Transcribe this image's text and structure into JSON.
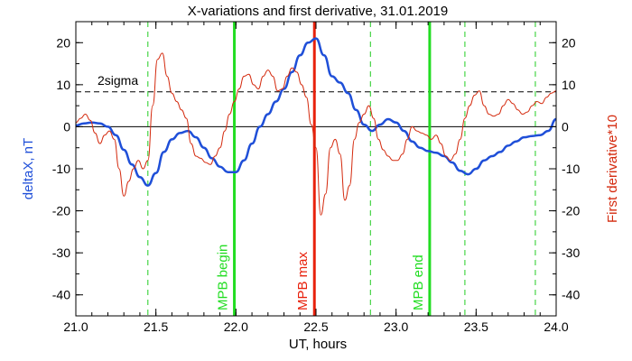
{
  "chart_data": {
    "type": "line",
    "title": "X-variations and first derivative, 31.01.2019",
    "xlabel": "UT, hours",
    "ylabel_left": "deltaX, nT",
    "ylabel_right": "First derivative*10",
    "xlim": [
      21.0,
      24.0
    ],
    "ylim": [
      -45,
      25
    ],
    "x_ticks": [
      "21.0",
      "21.5",
      "22.0",
      "22.5",
      "23.0",
      "23.5",
      "24.0"
    ],
    "y_ticks": [
      "20",
      "10",
      "0",
      "-10",
      "-20",
      "-30",
      "-40"
    ],
    "y_tick_values": [
      20,
      10,
      0,
      -10,
      -20,
      -30,
      -40
    ],
    "colors": {
      "deltaX": "#1f4fd8",
      "derivative": "#d42a0e",
      "mpb_begin_end": "#22dd22",
      "mpb_max": "#e8210c",
      "dashed_green": "#22cc22",
      "sigma": "#000000",
      "left_axis_title": "#1f4fd8",
      "right_axis_title": "#d42a0e"
    },
    "sigma_line": {
      "label": "2sigma",
      "y": 8.3
    },
    "zero_line": 0,
    "vertical_markers": [
      {
        "label": "MPB begin",
        "x": 21.99,
        "style": "solid",
        "color_key": "mpb_begin_end"
      },
      {
        "label": "MPB max",
        "x": 22.49,
        "style": "solid",
        "color_key": "mpb_max"
      },
      {
        "label": "MPB end",
        "x": 23.21,
        "style": "solid",
        "color_key": "mpb_begin_end"
      },
      {
        "label": "",
        "x": 21.45,
        "style": "dashed",
        "color_key": "dashed_green"
      },
      {
        "label": "",
        "x": 22.84,
        "style": "dashed",
        "color_key": "dashed_green"
      },
      {
        "label": "",
        "x": 23.43,
        "style": "dashed",
        "color_key": "dashed_green"
      },
      {
        "label": "",
        "x": 23.87,
        "style": "dashed",
        "color_key": "dashed_green"
      }
    ],
    "series": [
      {
        "key": "deltaX",
        "x": [
          21.0,
          21.05,
          21.1,
          21.15,
          21.2,
          21.25,
          21.3,
          21.35,
          21.4,
          21.45,
          21.5,
          21.55,
          21.6,
          21.65,
          21.7,
          21.75,
          21.8,
          21.85,
          21.9,
          21.95,
          22.0,
          22.05,
          22.1,
          22.15,
          22.2,
          22.25,
          22.3,
          22.35,
          22.4,
          22.45,
          22.5,
          22.55,
          22.6,
          22.65,
          22.7,
          22.75,
          22.8,
          22.85,
          22.9,
          22.95,
          23.0,
          23.05,
          23.1,
          23.15,
          23.2,
          23.25,
          23.3,
          23.35,
          23.4,
          23.45,
          23.5,
          23.55,
          23.6,
          23.65,
          23.7,
          23.75,
          23.8,
          23.85,
          23.9,
          23.95,
          24.0
        ],
        "values": [
          0.3,
          0.8,
          1.0,
          0.8,
          0.0,
          -2.0,
          -5.5,
          -9.0,
          -12.0,
          -14.0,
          -11.0,
          -6.0,
          -3.0,
          -1.5,
          -1.0,
          -2.5,
          -5.0,
          -7.5,
          -9.5,
          -10.8,
          -10.8,
          -8.0,
          -4.0,
          0.0,
          3.0,
          6.0,
          9.0,
          13.0,
          17.0,
          20.0,
          21.0,
          17.0,
          12.0,
          10.5,
          8.0,
          4.0,
          0.5,
          -1.0,
          0.5,
          1.8,
          1.0,
          -1.0,
          -3.5,
          -5.0,
          -5.8,
          -6.2,
          -7.0,
          -8.5,
          -10.5,
          -11.3,
          -10.0,
          -8.0,
          -7.0,
          -6.0,
          -4.5,
          -3.5,
          -2.5,
          -2.2,
          -2.0,
          -1.0,
          1.8
        ]
      },
      {
        "key": "derivative",
        "x": [
          21.0,
          21.03,
          21.06,
          21.09,
          21.12,
          21.15,
          21.18,
          21.21,
          21.24,
          21.27,
          21.3,
          21.33,
          21.36,
          21.39,
          21.42,
          21.45,
          21.48,
          21.51,
          21.54,
          21.57,
          21.6,
          21.63,
          21.66,
          21.69,
          21.72,
          21.75,
          21.78,
          21.81,
          21.84,
          21.87,
          21.9,
          21.93,
          21.96,
          21.99,
          22.02,
          22.05,
          22.08,
          22.11,
          22.14,
          22.17,
          22.2,
          22.23,
          22.26,
          22.29,
          22.32,
          22.35,
          22.38,
          22.41,
          22.44,
          22.47,
          22.5,
          22.53,
          22.56,
          22.59,
          22.62,
          22.65,
          22.68,
          22.71,
          22.74,
          22.77,
          22.8,
          22.83,
          22.86,
          22.89,
          22.92,
          22.95,
          22.98,
          23.01,
          23.04,
          23.07,
          23.1,
          23.13,
          23.16,
          23.19,
          23.22,
          23.25,
          23.28,
          23.31,
          23.34,
          23.37,
          23.4,
          23.43,
          23.46,
          23.49,
          23.52,
          23.55,
          23.58,
          23.61,
          23.64,
          23.67,
          23.7,
          23.73,
          23.76,
          23.79,
          23.82,
          23.85,
          23.88,
          23.91,
          23.94,
          23.97,
          24.0
        ],
        "values": [
          1.0,
          2.0,
          3.0,
          1.5,
          -1.5,
          -4.0,
          -2.0,
          -1.0,
          -3.0,
          -10.0,
          -16.5,
          -13.0,
          -10.0,
          -8.0,
          -10.0,
          -8.0,
          5.0,
          16.0,
          17.5,
          12.0,
          8.0,
          6.0,
          4.0,
          2.0,
          -4.0,
          -7.0,
          -7.5,
          -8.5,
          -9.0,
          -7.0,
          -5.0,
          -1.0,
          3.0,
          6.0,
          9.0,
          12.0,
          12.5,
          10.0,
          9.0,
          12.0,
          13.5,
          12.0,
          8.5,
          9.0,
          12.0,
          14.0,
          13.0,
          10.0,
          7.0,
          0.5,
          -5.0,
          -21.0,
          -16.0,
          -5.0,
          -3.0,
          -6.5,
          -17.5,
          -14.0,
          -3.0,
          1.0,
          3.0,
          5.0,
          2.0,
          -3.0,
          -5.5,
          -7.0,
          -8.0,
          -8.0,
          -6.5,
          -3.0,
          0.0,
          -1.0,
          -1.5,
          -2.0,
          -3.0,
          -2.0,
          -4.0,
          -7.0,
          -8.0,
          -6.5,
          -3.0,
          2.0,
          5.0,
          7.5,
          8.5,
          5.0,
          3.0,
          2.5,
          3.0,
          5.0,
          6.5,
          5.5,
          4.0,
          3.0,
          3.5,
          5.0,
          6.0,
          5.5,
          7.0,
          8.0,
          8.5
        ]
      }
    ]
  }
}
